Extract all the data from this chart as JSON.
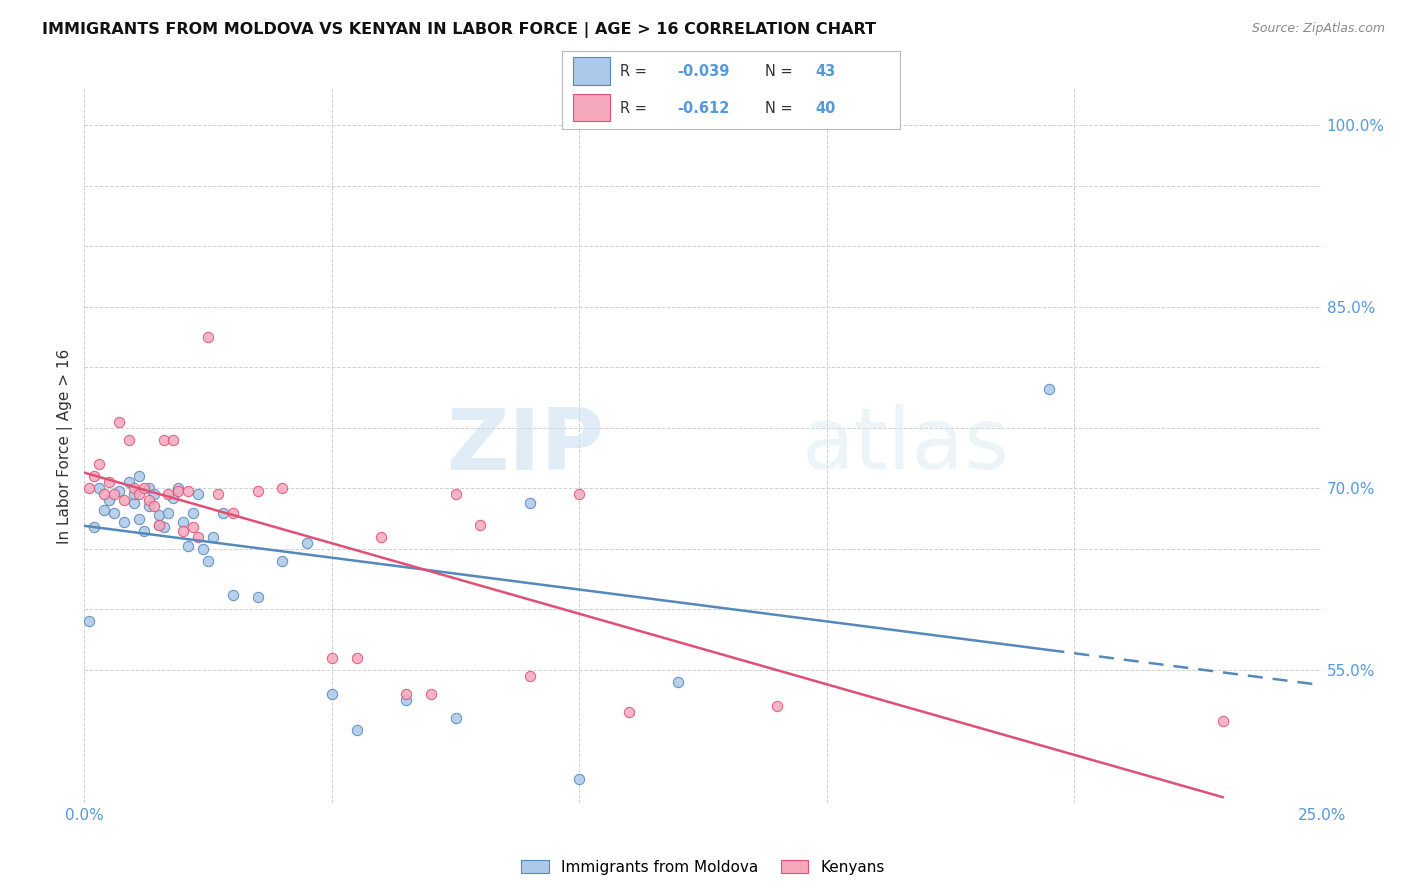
{
  "title": "IMMIGRANTS FROM MOLDOVA VS KENYAN IN LABOR FORCE | AGE > 16 CORRELATION CHART",
  "source": "Source: ZipAtlas.com",
  "ylabel": "In Labor Force | Age > 16",
  "x_min": 0.0,
  "x_max": 0.25,
  "y_min": 0.44,
  "y_max": 1.03,
  "watermark_zip": "ZIP",
  "watermark_atlas": "atlas",
  "legend_blue_label": "Immigrants from Moldova",
  "legend_pink_label": "Kenyans",
  "R_blue": -0.039,
  "N_blue": 43,
  "R_pink": -0.612,
  "N_pink": 40,
  "blue_scatter_x": [
    0.001,
    0.002,
    0.003,
    0.004,
    0.005,
    0.006,
    0.007,
    0.008,
    0.009,
    0.01,
    0.01,
    0.011,
    0.011,
    0.012,
    0.013,
    0.013,
    0.014,
    0.015,
    0.015,
    0.016,
    0.017,
    0.018,
    0.019,
    0.02,
    0.021,
    0.022,
    0.023,
    0.024,
    0.025,
    0.026,
    0.028,
    0.03,
    0.035,
    0.04,
    0.045,
    0.05,
    0.055,
    0.065,
    0.075,
    0.09,
    0.1,
    0.12,
    0.195
  ],
  "blue_scatter_y": [
    0.59,
    0.668,
    0.7,
    0.682,
    0.69,
    0.68,
    0.698,
    0.672,
    0.705,
    0.688,
    0.695,
    0.675,
    0.71,
    0.665,
    0.7,
    0.685,
    0.695,
    0.67,
    0.678,
    0.668,
    0.68,
    0.692,
    0.7,
    0.672,
    0.652,
    0.68,
    0.695,
    0.65,
    0.64,
    0.66,
    0.68,
    0.612,
    0.61,
    0.64,
    0.655,
    0.53,
    0.5,
    0.525,
    0.51,
    0.688,
    0.46,
    0.54,
    0.782
  ],
  "pink_scatter_x": [
    0.001,
    0.002,
    0.003,
    0.004,
    0.005,
    0.006,
    0.007,
    0.008,
    0.009,
    0.01,
    0.011,
    0.012,
    0.013,
    0.014,
    0.015,
    0.016,
    0.017,
    0.018,
    0.019,
    0.02,
    0.021,
    0.022,
    0.023,
    0.025,
    0.027,
    0.03,
    0.035,
    0.04,
    0.05,
    0.055,
    0.06,
    0.065,
    0.07,
    0.075,
    0.08,
    0.09,
    0.1,
    0.11,
    0.14,
    0.23
  ],
  "pink_scatter_y": [
    0.7,
    0.71,
    0.72,
    0.695,
    0.705,
    0.695,
    0.755,
    0.69,
    0.74,
    0.7,
    0.695,
    0.7,
    0.69,
    0.685,
    0.67,
    0.74,
    0.695,
    0.74,
    0.698,
    0.665,
    0.698,
    0.668,
    0.66,
    0.825,
    0.695,
    0.68,
    0.698,
    0.7,
    0.56,
    0.56,
    0.66,
    0.53,
    0.53,
    0.695,
    0.67,
    0.545,
    0.695,
    0.515,
    0.52,
    0.508
  ],
  "blue_color": "#adc8e8",
  "pink_color": "#f5a8bc",
  "blue_line_color": "#5588bb",
  "pink_line_color": "#e05075",
  "background_color": "#ffffff",
  "grid_color": "#cccccc",
  "tick_color": "#5599dd",
  "text_color": "#333333"
}
